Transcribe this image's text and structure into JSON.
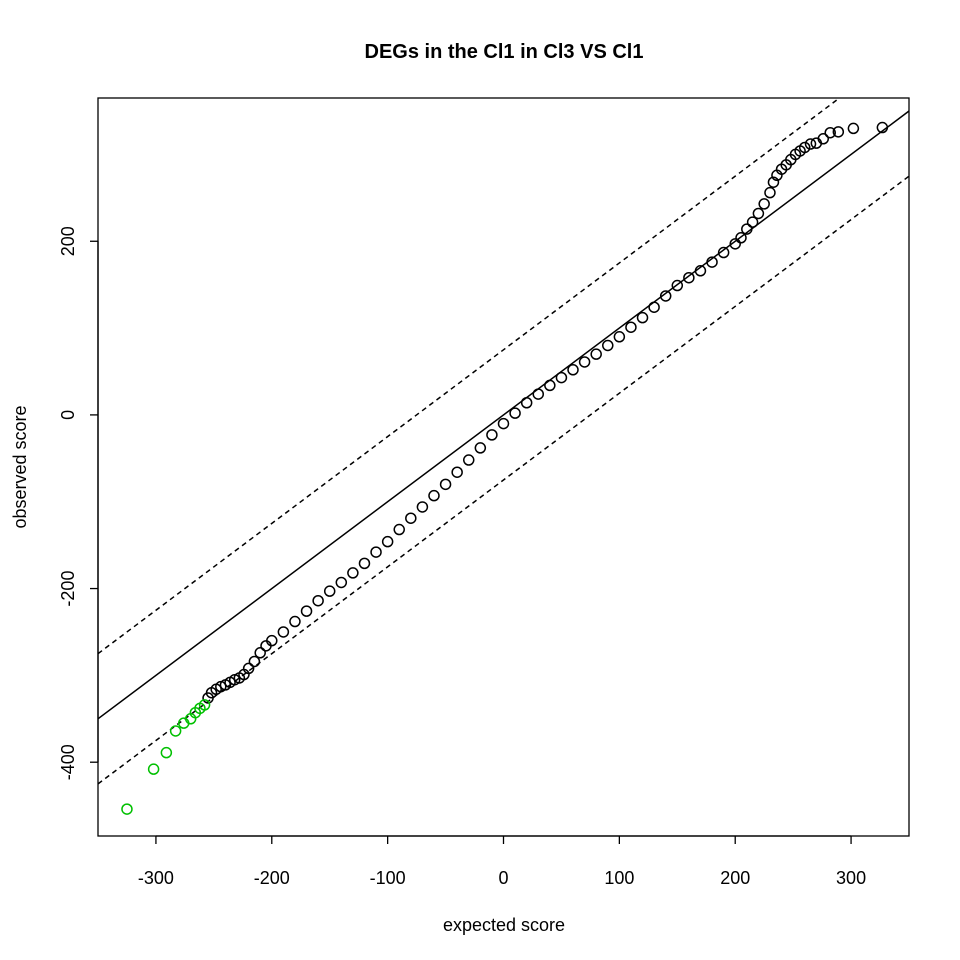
{
  "chart_data": {
    "type": "scatter",
    "title": "DEGs in the Cl1 in Cl3 VS Cl1",
    "xlabel": "expected score",
    "ylabel": "observed score",
    "xlim": [
      -350,
      350
    ],
    "ylim": [
      -485,
      365
    ],
    "xticks": [
      -300,
      -200,
      -100,
      0,
      100,
      200,
      300
    ],
    "yticks": [
      -400,
      -200,
      0,
      200
    ],
    "grid": false,
    "colors": {
      "normal": "#000000",
      "significant": "#00c000",
      "lines": "#000000"
    },
    "reference_lines": [
      {
        "style": "solid",
        "slope": 1,
        "intercept": 0
      },
      {
        "style": "dashed",
        "slope": 1,
        "intercept": 75
      },
      {
        "style": "dashed",
        "slope": 1,
        "intercept": -75
      }
    ],
    "series": [
      {
        "status": "not significant",
        "color": "#000000",
        "points": [
          [
            -255,
            -326
          ],
          [
            -252,
            -320
          ],
          [
            -248,
            -316
          ],
          [
            -244,
            -313
          ],
          [
            -240,
            -311
          ],
          [
            -236,
            -308
          ],
          [
            -232,
            -305
          ],
          [
            -228,
            -303
          ],
          [
            -224,
            -299
          ],
          [
            -220,
            -292
          ],
          [
            -215,
            -284
          ],
          [
            -210,
            -274
          ],
          [
            -205,
            -266
          ],
          [
            -200,
            -260
          ],
          [
            -190,
            -250
          ],
          [
            -180,
            -238
          ],
          [
            -170,
            -226
          ],
          [
            -160,
            -214
          ],
          [
            -150,
            -203
          ],
          [
            -140,
            -193
          ],
          [
            -130,
            -182
          ],
          [
            -120,
            -171
          ],
          [
            -110,
            -158
          ],
          [
            -100,
            -146
          ],
          [
            -90,
            -132
          ],
          [
            -80,
            -119
          ],
          [
            -70,
            -106
          ],
          [
            -60,
            -93
          ],
          [
            -50,
            -80
          ],
          [
            -40,
            -66
          ],
          [
            -30,
            -52
          ],
          [
            -20,
            -38
          ],
          [
            -10,
            -23
          ],
          [
            0,
            -10
          ],
          [
            10,
            2
          ],
          [
            20,
            14
          ],
          [
            30,
            24
          ],
          [
            40,
            34
          ],
          [
            50,
            43
          ],
          [
            60,
            52
          ],
          [
            70,
            61
          ],
          [
            80,
            70
          ],
          [
            90,
            80
          ],
          [
            100,
            90
          ],
          [
            110,
            101
          ],
          [
            120,
            112
          ],
          [
            130,
            124
          ],
          [
            140,
            137
          ],
          [
            150,
            149
          ],
          [
            160,
            158
          ],
          [
            170,
            166
          ],
          [
            180,
            176
          ],
          [
            190,
            187
          ],
          [
            200,
            197
          ],
          [
            205,
            204
          ],
          [
            210,
            214
          ],
          [
            215,
            222
          ],
          [
            220,
            232
          ],
          [
            225,
            243
          ],
          [
            230,
            256
          ],
          [
            233,
            268
          ],
          [
            236,
            276
          ],
          [
            240,
            283
          ],
          [
            244,
            288
          ],
          [
            248,
            294
          ],
          [
            252,
            300
          ],
          [
            256,
            304
          ],
          [
            260,
            308
          ],
          [
            265,
            312
          ],
          [
            270,
            313
          ],
          [
            276,
            318
          ],
          [
            282,
            325
          ],
          [
            289,
            326
          ],
          [
            302,
            330
          ],
          [
            327,
            331
          ]
        ]
      },
      {
        "status": "significant",
        "color": "#00c000",
        "points": [
          [
            -258,
            -334
          ],
          [
            -262,
            -338
          ],
          [
            -266,
            -343
          ],
          [
            -270,
            -350
          ],
          [
            -276,
            -355
          ],
          [
            -283,
            -364
          ],
          [
            -291,
            -389
          ],
          [
            -302,
            -408
          ],
          [
            -325,
            -454
          ]
        ]
      }
    ]
  }
}
